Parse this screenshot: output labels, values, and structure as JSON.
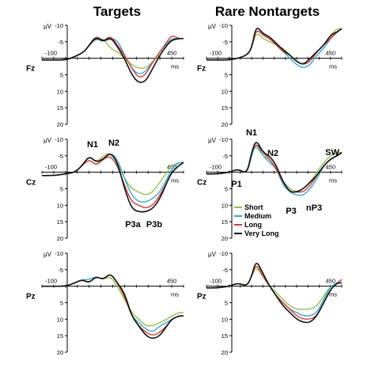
{
  "figure": {
    "column_titles": [
      "Targets",
      "Rare Nontargets"
    ],
    "row_labels": [
      "Fz",
      "Cz",
      "Pz"
    ],
    "y_unit": "µV",
    "x_unit": "ms",
    "x_tick_labels": [
      "-100",
      "450"
    ],
    "y_tick_labels": [
      "-10",
      "-5",
      "0",
      "5",
      "10",
      "15",
      "20"
    ],
    "component_labels_targets": [
      "N1",
      "N2",
      "P3a",
      "P3b"
    ],
    "component_labels_nontargets": [
      "N1",
      "N2",
      "P1",
      "P3",
      "nP3",
      "SW"
    ],
    "legend": [
      "Short",
      "Medium",
      "Long",
      "Very Long"
    ],
    "colors": {
      "Short": "#8dc63f",
      "Medium": "#29abe2",
      "Long": "#e8342e",
      "Very Long": "#111111"
    }
  },
  "chart_data": [
    {
      "type": "line",
      "title": "Targets",
      "row_label": "Fz",
      "xlabel": "ms",
      "ylabel": "µV",
      "xlim": [
        -100,
        500
      ],
      "ylim": [
        -10,
        20
      ],
      "y_inverted": true,
      "x": [
        -100,
        -50,
        0,
        40,
        80,
        100,
        130,
        160,
        190,
        220,
        250,
        280,
        310,
        340,
        370,
        400,
        430,
        450,
        480,
        500
      ],
      "series": [
        {
          "name": "Short",
          "values": [
            0.5,
            0.5,
            0.5,
            -0.5,
            -2,
            -4,
            -6,
            -6,
            -3,
            -2,
            0,
            2,
            3,
            3,
            1,
            -1,
            -4,
            -6,
            -6,
            -6
          ]
        },
        {
          "name": "Medium",
          "values": [
            0.5,
            0.5,
            0.5,
            -0.5,
            -2,
            -4,
            -6,
            -5,
            -6,
            -5.5,
            -1,
            3,
            5,
            4,
            1,
            -2,
            -4.5,
            -6,
            -6,
            -6
          ]
        },
        {
          "name": "Long",
          "values": [
            0.5,
            0.5,
            0.5,
            -0.5,
            -2,
            -4,
            -7,
            -5,
            -7,
            -4,
            -1,
            3,
            6,
            5,
            1,
            -2,
            -5,
            -7,
            -6,
            -6
          ]
        },
        {
          "name": "Very Long",
          "values": [
            0.5,
            0.5,
            0.5,
            -0.5,
            -2,
            -4,
            -6.5,
            -5,
            -6.5,
            -3.5,
            0,
            5,
            7.5,
            7,
            3,
            -1,
            -4,
            -5.5,
            -6,
            -6
          ]
        }
      ]
    },
    {
      "type": "line",
      "title": "Rare Nontargets",
      "row_label": "Fz",
      "xlabel": "ms",
      "ylabel": "µV",
      "xlim": [
        -100,
        500
      ],
      "ylim": [
        -10,
        20
      ],
      "y_inverted": true,
      "x": [
        -100,
        -50,
        0,
        40,
        80,
        100,
        120,
        150,
        180,
        210,
        240,
        270,
        300,
        330,
        360,
        390,
        420,
        450,
        480,
        500
      ],
      "series": [
        {
          "name": "Short",
          "values": [
            0.5,
            0.5,
            0.5,
            0,
            -1,
            -3,
            -8,
            -6,
            -5,
            -4,
            -3,
            -1,
            1,
            2,
            0,
            -2,
            -4,
            -7,
            -9,
            -9
          ]
        },
        {
          "name": "Medium",
          "values": [
            0.5,
            0.5,
            0.5,
            0,
            -1,
            -3,
            -9,
            -7,
            -6,
            -4,
            -2,
            0,
            2,
            3,
            2,
            -1,
            -3,
            -6,
            -8,
            -9
          ]
        },
        {
          "name": "Long",
          "values": [
            0.5,
            0.5,
            0.5,
            0,
            -1,
            -3,
            -9,
            -7,
            -6,
            -4,
            -2,
            -1,
            1,
            2,
            1,
            -2,
            -4,
            -6,
            -8,
            -9
          ]
        },
        {
          "name": "Very Long",
          "values": [
            0.5,
            0.5,
            0.5,
            0,
            -1,
            -3,
            -10,
            -7.5,
            -6.5,
            -4.5,
            -2.5,
            -1,
            1,
            2,
            0,
            -2,
            -4,
            -7,
            -8,
            -9
          ]
        }
      ]
    },
    {
      "type": "line",
      "title": "Targets",
      "row_label": "Cz",
      "xlabel": "ms",
      "ylabel": "µV",
      "xlim": [
        -100,
        500
      ],
      "ylim": [
        -10,
        20
      ],
      "y_inverted": true,
      "x": [
        -100,
        -50,
        0,
        40,
        70,
        100,
        130,
        160,
        190,
        220,
        250,
        280,
        310,
        340,
        370,
        400,
        430,
        450,
        480,
        500
      ],
      "series": [
        {
          "name": "Short",
          "values": [
            1,
            1,
            0.5,
            0,
            -2,
            -5,
            -3,
            -5,
            -6,
            -3,
            2,
            5,
            6,
            7,
            6,
            3,
            0,
            -2,
            -3,
            -3
          ]
        },
        {
          "name": "Medium",
          "values": [
            1,
            1,
            0.5,
            0,
            -2,
            -5,
            -3,
            -4,
            -6,
            -4,
            2,
            7,
            9,
            9,
            8,
            6,
            2,
            -1,
            -3,
            -3
          ]
        },
        {
          "name": "Long",
          "values": [
            1,
            1,
            0.5,
            0,
            -2,
            -4,
            -2,
            -4,
            -5,
            -2,
            4,
            9,
            10,
            11,
            10,
            7,
            3,
            0,
            -2,
            -3
          ]
        },
        {
          "name": "Very Long",
          "values": [
            1,
            1,
            0.5,
            0,
            -2,
            -5,
            -3,
            -4,
            -6,
            -3,
            5,
            11,
            12,
            12,
            11,
            8,
            3,
            0,
            -2,
            -3
          ]
        }
      ]
    },
    {
      "type": "line",
      "title": "Rare Nontargets",
      "row_label": "Cz",
      "xlabel": "ms",
      "ylabel": "µV",
      "xlim": [
        -100,
        500
      ],
      "ylim": [
        -10,
        20
      ],
      "y_inverted": true,
      "x": [
        -100,
        -50,
        0,
        40,
        80,
        100,
        120,
        150,
        180,
        210,
        240,
        270,
        300,
        330,
        360,
        390,
        420,
        450,
        480,
        500
      ],
      "series": [
        {
          "name": "Short",
          "values": [
            0.5,
            0.5,
            0,
            -1,
            0.5,
            -6,
            -8,
            -5,
            -4,
            -1,
            3,
            5,
            6,
            5,
            3,
            0,
            -3,
            -5,
            -6,
            -6
          ]
        },
        {
          "name": "Medium",
          "values": [
            0.5,
            0.5,
            0,
            -1,
            0.5,
            -5,
            -9,
            -5,
            -3,
            -1,
            4,
            6,
            7,
            7,
            5,
            2,
            -2,
            -4,
            -5,
            -6
          ]
        },
        {
          "name": "Long",
          "values": [
            0.5,
            0.5,
            0,
            -1,
            0.5,
            -6,
            -9,
            -6,
            -4,
            -1,
            3,
            6,
            6,
            6,
            4,
            1,
            -2,
            -4,
            -5,
            -6
          ]
        },
        {
          "name": "Very Long",
          "values": [
            0.5,
            0.5,
            0,
            -1,
            0.5,
            -6,
            -10,
            -6,
            -5,
            -2,
            3,
            6,
            6,
            5,
            3,
            1,
            -2,
            -4,
            -5,
            -6
          ]
        }
      ]
    },
    {
      "type": "line",
      "title": "Targets",
      "row_label": "Pz",
      "xlabel": "ms",
      "ylabel": "µV",
      "xlim": [
        -100,
        500
      ],
      "ylim": [
        -10,
        20
      ],
      "y_inverted": true,
      "x": [
        -100,
        -50,
        0,
        40,
        70,
        100,
        130,
        160,
        190,
        220,
        250,
        280,
        310,
        340,
        370,
        400,
        430,
        450,
        480,
        500
      ],
      "series": [
        {
          "name": "Short",
          "values": [
            0,
            0,
            0,
            -1,
            -2,
            -1,
            -3,
            -2,
            -3,
            0,
            4,
            8,
            10,
            12,
            12,
            11,
            10,
            9,
            8,
            8
          ]
        },
        {
          "name": "Medium",
          "values": [
            0,
            0,
            0,
            -1,
            -2,
            -2,
            -3,
            -2,
            -4,
            -1,
            3,
            9,
            11,
            13,
            14,
            12,
            11,
            10,
            9,
            9
          ]
        },
        {
          "name": "Long",
          "values": [
            0,
            0,
            0,
            -1,
            -2,
            -1,
            -3,
            -2,
            -4,
            -1,
            3,
            9,
            12,
            14,
            15,
            14,
            12,
            10,
            9,
            9
          ]
        },
        {
          "name": "Very Long",
          "values": [
            0,
            0,
            0,
            -1,
            -2,
            -1,
            -3,
            -2,
            -4,
            -1,
            2,
            9,
            12,
            15,
            16,
            15,
            12,
            10,
            9,
            9
          ]
        }
      ]
    },
    {
      "type": "line",
      "title": "Rare Nontargets",
      "row_label": "Pz",
      "xlabel": "ms",
      "ylabel": "µV",
      "xlim": [
        -100,
        500
      ],
      "ylim": [
        -10,
        20
      ],
      "y_inverted": true,
      "x": [
        -100,
        -50,
        0,
        40,
        80,
        100,
        120,
        150,
        180,
        210,
        240,
        270,
        300,
        330,
        360,
        390,
        420,
        450,
        480,
        500
      ],
      "series": [
        {
          "name": "Short",
          "values": [
            0.5,
            0.5,
            0,
            -1,
            0,
            -3,
            -6,
            -3,
            0,
            2,
            4,
            6,
            7,
            7,
            7,
            6,
            3,
            0,
            -1,
            -2
          ]
        },
        {
          "name": "Medium",
          "values": [
            0.5,
            0.5,
            0,
            -1,
            0,
            -3,
            -7,
            -3,
            0,
            3,
            5,
            7,
            8,
            9,
            9,
            8,
            4,
            0,
            -1,
            -2
          ]
        },
        {
          "name": "Long",
          "values": [
            0.5,
            0.5,
            0,
            -1,
            0,
            -3,
            -7,
            -3,
            0,
            3,
            5,
            7,
            9,
            10,
            10,
            9,
            5,
            1,
            -1,
            -2
          ]
        },
        {
          "name": "Very Long",
          "values": [
            0.5,
            0.5,
            0,
            -1,
            0,
            -3,
            -8,
            -4,
            0,
            3,
            6,
            8,
            10,
            11,
            11,
            9,
            5,
            1,
            -1,
            -1
          ]
        }
      ]
    }
  ]
}
